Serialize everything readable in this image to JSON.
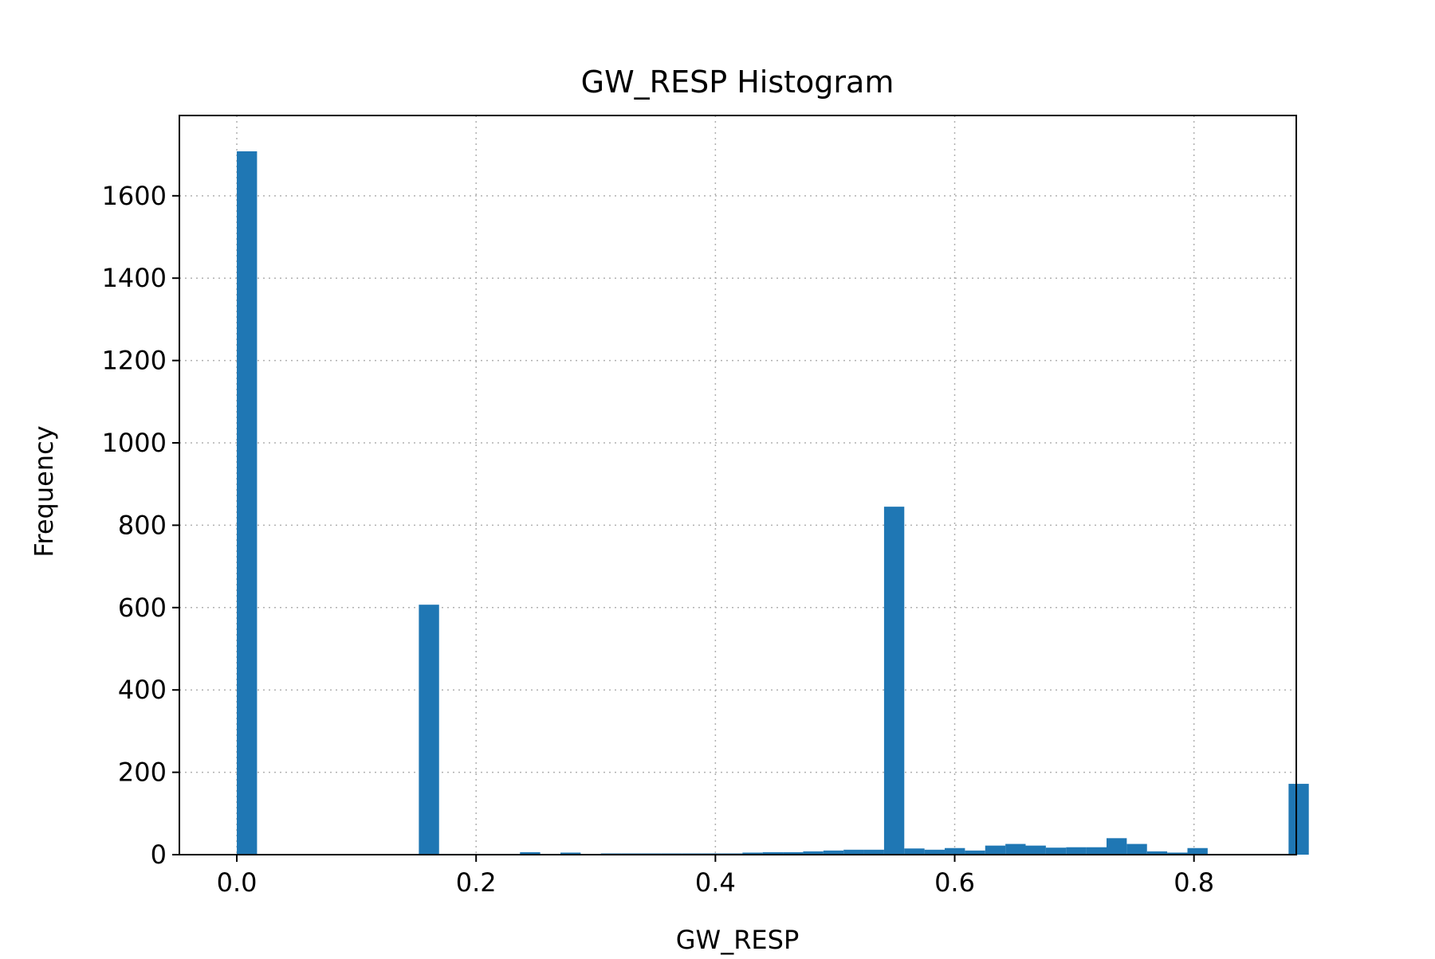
{
  "chart_data": {
    "type": "bar",
    "title": "GW_RESP Histogram",
    "xlabel": "GW_RESP",
    "ylabel": "Frequency",
    "xlim": [
      -0.048,
      0.8855
    ],
    "ylim": [
      0,
      1795
    ],
    "x_ticks": [
      0.0,
      0.2,
      0.4,
      0.6,
      0.8
    ],
    "x_tick_labels": [
      "0.0",
      "0.2",
      "0.4",
      "0.6",
      "0.8"
    ],
    "y_ticks": [
      0,
      200,
      400,
      600,
      800,
      1000,
      1200,
      1400,
      1600
    ],
    "y_tick_labels": [
      "0",
      "200",
      "400",
      "600",
      "800",
      "1000",
      "1200",
      "1400",
      "1600"
    ],
    "grid": true,
    "bar_color": "#1f77b4",
    "bins": {
      "start": 0.0,
      "width": 0.016905,
      "counts": [
        1708,
        0,
        0,
        0,
        0,
        0,
        0,
        0,
        0,
        607,
        2,
        2,
        2,
        2,
        6,
        2,
        5,
        2,
        3,
        3,
        3,
        3,
        3,
        3,
        3,
        5,
        6,
        6,
        8,
        10,
        12,
        12,
        845,
        15,
        12,
        16,
        10,
        22,
        26,
        22,
        17,
        18,
        18,
        40,
        26,
        8,
        5,
        16,
        2,
        2,
        2,
        2,
        172
      ]
    }
  }
}
